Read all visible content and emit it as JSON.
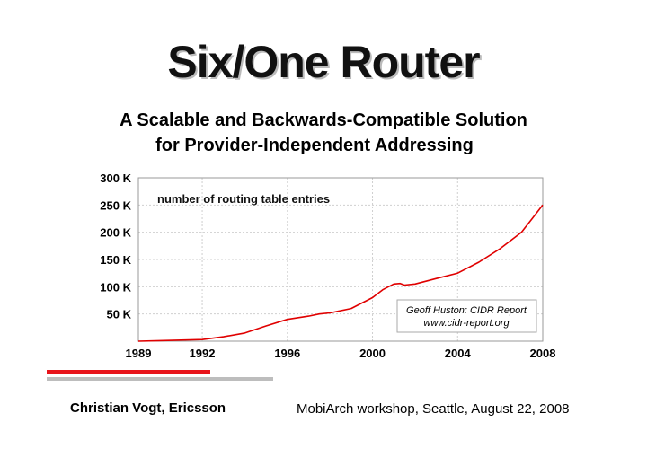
{
  "slide": {
    "title": "Six/One Router",
    "subtitle_line1": "A Scalable and Backwards-Compatible Solution",
    "subtitle_line2": "for Provider-Independent Addressing",
    "author": "Christian Vogt, Ericsson",
    "venue": "MobiArch workshop, Seattle, August 22, 2008",
    "accent_color": "#e8141b",
    "secondary_rule_color": "#bdbdbd"
  },
  "chart_data": {
    "type": "line",
    "title": "number of routing table entries",
    "xlabel": "",
    "ylabel": "",
    "x_ticks": [
      1989,
      1992,
      1996,
      2000,
      2004,
      2008
    ],
    "y_ticks": [
      {
        "value": 50,
        "label": "50 K"
      },
      {
        "value": 100,
        "label": "100 K"
      },
      {
        "value": 150,
        "label": "150 K"
      },
      {
        "value": 200,
        "label": "200 K"
      },
      {
        "value": 250,
        "label": "250 K"
      },
      {
        "value": 300,
        "label": "300 K"
      }
    ],
    "xlim": [
      1989,
      2008
    ],
    "ylim": [
      0,
      300
    ],
    "grid": true,
    "series": [
      {
        "color": "#e00000",
        "x": [
          1989.0,
          1990.0,
          1991.0,
          1992.0,
          1993.0,
          1994.0,
          1995.0,
          1996.0,
          1997.0,
          1997.5,
          1998.0,
          1999.0,
          2000.0,
          2000.5,
          2001.0,
          2001.3,
          2001.5,
          2002.0,
          2003.0,
          2004.0,
          2005.0,
          2006.0,
          2007.0,
          2007.5,
          2008.0
        ],
        "y": [
          0,
          1,
          2,
          3,
          8,
          15,
          28,
          40,
          46,
          50,
          52,
          60,
          80,
          95,
          105,
          106,
          103,
          105,
          115,
          125,
          145,
          170,
          200,
          225,
          250
        ]
      }
    ],
    "annotation": {
      "line1": "Geoff Huston: CIDR Report",
      "line2": "www.cidr-report.org"
    }
  }
}
